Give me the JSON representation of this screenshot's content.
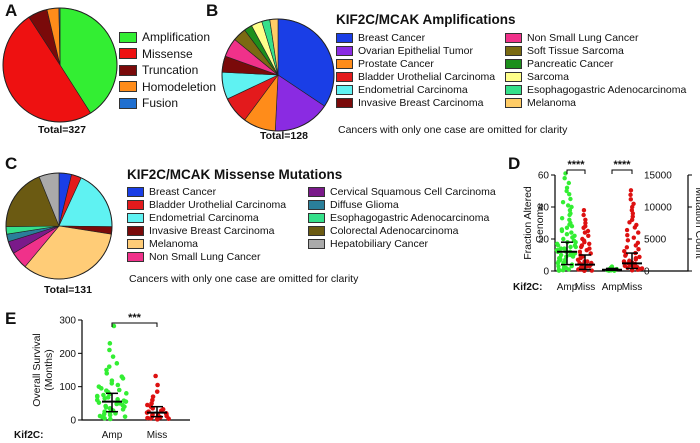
{
  "panels": {
    "a": "A",
    "b": "B",
    "c": "C",
    "d": "D",
    "e": "E"
  },
  "colors": {
    "green": "#33ee33",
    "red": "#dd1111",
    "dark_red": "#7a0a0a",
    "orange": "#ff8c1a",
    "blue": "#1f6fd0",
    "black": "#000000"
  },
  "chart_data": [
    {
      "panel": "A",
      "type": "pie",
      "title": "",
      "categories": [
        "Amplification",
        "Missense",
        "Truncation",
        "Homodeletion",
        "Fusion"
      ],
      "values": [
        134,
        163,
        18,
        11,
        1
      ],
      "colors": [
        "#33ee33",
        "#ee1111",
        "#7a0a0a",
        "#ff8c1a",
        "#1f6fd0"
      ],
      "total_label": "Total=327"
    },
    {
      "panel": "B",
      "type": "pie",
      "title": "KIF2C/MCAK Amplifications",
      "categories": [
        "Breast Cancer",
        "Ovarian Epithelial Tumor",
        "Prostate Cancer",
        "Bladder Urothelial Carcinoma",
        "Endometrial Carcinoma",
        "Invasive Breast Carcinoma",
        "Non Small Lung Cancer",
        "Soft Tissue Sarcoma",
        "Pancreatic Cancer",
        "Sarcoma",
        "Esophagogastric Adenocarcinoma",
        "Melanoma"
      ],
      "values": [
        44,
        21,
        12,
        10,
        10,
        6,
        7,
        5,
        3,
        4,
        3,
        3
      ],
      "colors": [
        "#1a3ee6",
        "#8a2be2",
        "#ff8c1a",
        "#e31a1c",
        "#5ff2f2",
        "#7a0a0a",
        "#f0318a",
        "#7a6a12",
        "#1c8f1c",
        "#ffff8a",
        "#35e08a",
        "#ffcc66"
      ],
      "note": "Cancers with only one case are omitted for clarity",
      "total_label": "Total=128"
    },
    {
      "panel": "C",
      "type": "pie",
      "title": "KIF2C/MCAK Missense Mutations",
      "categories": [
        "Breast Cancer",
        "Bladder Urothelial Carcinoma",
        "Endometrial Carcinoma",
        "Invasive Breast Carcinoma",
        "Melanoma",
        "Non Small Lung Cancer",
        "Cervical Squamous Cell Carcinoma",
        "Diffuse Glioma",
        "Esophagogastric Adenocarcinoma",
        "Colorectal Adenocarcinoma",
        "Hepatobiliary Cancer"
      ],
      "values": [
        5,
        4,
        24,
        3,
        44,
        7,
        5,
        3,
        3,
        25,
        8
      ],
      "colors": [
        "#1a3ee6",
        "#e31a1c",
        "#5ff2f2",
        "#7a0a0a",
        "#ffcc77",
        "#f0318a",
        "#7a1a8a",
        "#2a7f9a",
        "#35e08a",
        "#6b5a12",
        "#aaaaaa"
      ],
      "note": "Cancers with only one case are omitted for clarity",
      "total_label": "Total=131"
    },
    {
      "panel": "D",
      "type": "scatter",
      "title": "",
      "x_prefix": "Kif2C:",
      "categories": [
        "Amp",
        "Miss",
        "Amp",
        "Miss"
      ],
      "ylabel_left": "Fraction Altered Genome",
      "ylabel_right": "Mutation Count",
      "ylim_left": [
        0,
        60
      ],
      "ylim_right": [
        0,
        15000
      ],
      "yticks_left": [
        "0",
        "20",
        "40",
        "60"
      ],
      "yticks_right": [
        "0",
        "5000",
        "10000",
        "15000"
      ],
      "series": [
        {
          "category": "Amp",
          "axis": "left",
          "color": "#33ee33",
          "median": 12,
          "iqr": [
            4,
            18
          ],
          "values": [
            61,
            58,
            55,
            52,
            50,
            48,
            45,
            43,
            41,
            40,
            38,
            36,
            35,
            33,
            32,
            30,
            29,
            28,
            27,
            26,
            25,
            24,
            23,
            22,
            21,
            20,
            19,
            18,
            18,
            17,
            16,
            16,
            15,
            15,
            14,
            14,
            13,
            13,
            12,
            12,
            12,
            11,
            11,
            10,
            10,
            9,
            9,
            8,
            8,
            7,
            7,
            6,
            6,
            5,
            5,
            4,
            4,
            3,
            3,
            2,
            2,
            1,
            1,
            0.5,
            0.2
          ]
        },
        {
          "category": "Miss",
          "axis": "left",
          "color": "#dd1111",
          "median": 4,
          "iqr": [
            1,
            10
          ],
          "values": [
            38,
            35,
            32,
            30,
            28,
            27,
            25,
            24,
            22,
            20,
            19,
            18,
            17,
            16,
            15,
            14,
            13,
            12,
            11,
            10,
            9,
            8,
            7,
            6,
            6,
            5,
            5,
            4,
            4,
            3,
            3,
            2,
            2,
            1,
            1,
            0.5,
            0.3,
            0.1
          ]
        },
        {
          "category": "Amp",
          "axis": "right",
          "color": "#33ee33",
          "median": 200,
          "iqr": [
            100,
            400
          ],
          "values": [
            700,
            500,
            400,
            300,
            250,
            200,
            150,
            120,
            100,
            80,
            60,
            40
          ]
        },
        {
          "category": "Miss",
          "axis": "right",
          "color": "#dd1111",
          "median": 1200,
          "iqr": [
            400,
            2800
          ],
          "values": [
            12600,
            11900,
            11200,
            10500,
            10000,
            9500,
            9000,
            8500,
            8000,
            7600,
            7200,
            6800,
            6400,
            6000,
            5600,
            5200,
            4800,
            4400,
            4000,
            3700,
            3400,
            3100,
            2800,
            2600,
            2400,
            2200,
            2000,
            1800,
            1600,
            1500,
            1400,
            1300,
            1200,
            1100,
            1000,
            900,
            800,
            700,
            600,
            500,
            400,
            300,
            200,
            150,
            100
          ]
        }
      ],
      "significance": [
        {
          "between": [
            "Amp",
            "Miss"
          ],
          "axis": "left",
          "label": "****"
        },
        {
          "between": [
            "Amp",
            "Miss"
          ],
          "axis": "right",
          "label": "****"
        }
      ]
    },
    {
      "panel": "E",
      "type": "scatter",
      "title": "",
      "x_prefix": "Kif2C:",
      "categories": [
        "Amp",
        "Miss"
      ],
      "ylabel": "Overall Survival (Months)",
      "ylim": [
        0,
        300
      ],
      "yticks": [
        "0",
        "100",
        "200",
        "300"
      ],
      "series": [
        {
          "category": "Amp",
          "color": "#33ee33",
          "median": 55,
          "iqr": [
            25,
            80
          ],
          "values": [
            282,
            230,
            210,
            190,
            170,
            160,
            150,
            140,
            130,
            125,
            118,
            110,
            105,
            100,
            95,
            90,
            88,
            84,
            80,
            78,
            75,
            72,
            70,
            68,
            65,
            62,
            60,
            58,
            55,
            52,
            50,
            48,
            45,
            42,
            40,
            38,
            35,
            32,
            30,
            28,
            25,
            22,
            20,
            18,
            15,
            12,
            10,
            8,
            5,
            3
          ]
        },
        {
          "category": "Miss",
          "color": "#dd1111",
          "median": 22,
          "iqr": [
            10,
            40
          ],
          "values": [
            132,
            105,
            85,
            70,
            60,
            50,
            45,
            40,
            35,
            32,
            28,
            25,
            22,
            20,
            18,
            16,
            14,
            12,
            10,
            8,
            6,
            5,
            4,
            3,
            2
          ]
        }
      ],
      "significance": [
        {
          "between": [
            "Amp",
            "Miss"
          ],
          "label": "***"
        }
      ]
    }
  ]
}
